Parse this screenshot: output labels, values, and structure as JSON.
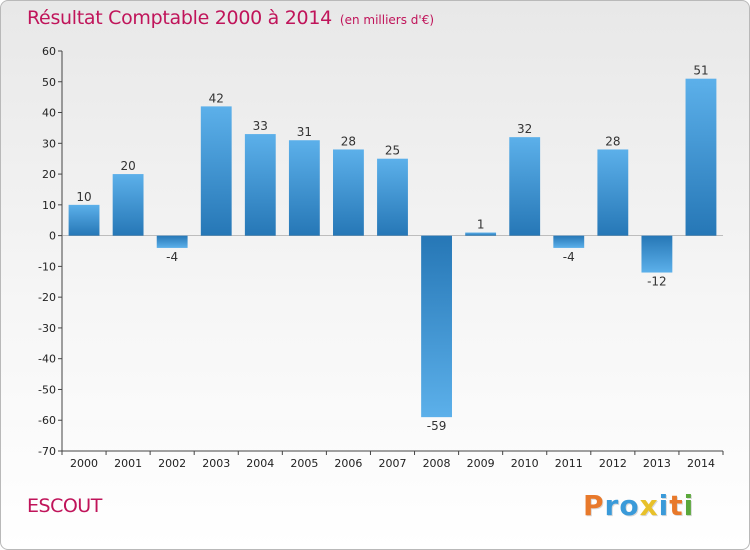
{
  "chart_data": {
    "type": "bar",
    "title": "Résultat Comptable 2000 à 2014",
    "unit_label": "(en milliers d'€)",
    "categories": [
      "2000",
      "2001",
      "2002",
      "2003",
      "2004",
      "2005",
      "2006",
      "2007",
      "2008",
      "2009",
      "2010",
      "2011",
      "2012",
      "2013",
      "2014"
    ],
    "values": [
      10,
      20,
      -4,
      42,
      33,
      31,
      28,
      25,
      -59,
      1,
      32,
      -4,
      28,
      -12,
      51
    ],
    "ylim": [
      -70,
      60
    ],
    "ytick_step": 10,
    "xlabel": "",
    "ylabel": "",
    "grid": false,
    "bar_color": "#3f8fcf"
  },
  "commune": "ESCOUT",
  "logo": {
    "letters": [
      "P",
      "r",
      "o",
      "x",
      "i",
      "t",
      "i"
    ],
    "colors": [
      "#e8792b",
      "#3a9ad9",
      "#3a9ad9",
      "#e8c12a",
      "#3a9ad9",
      "#e8792b",
      "#5aa83a"
    ]
  }
}
